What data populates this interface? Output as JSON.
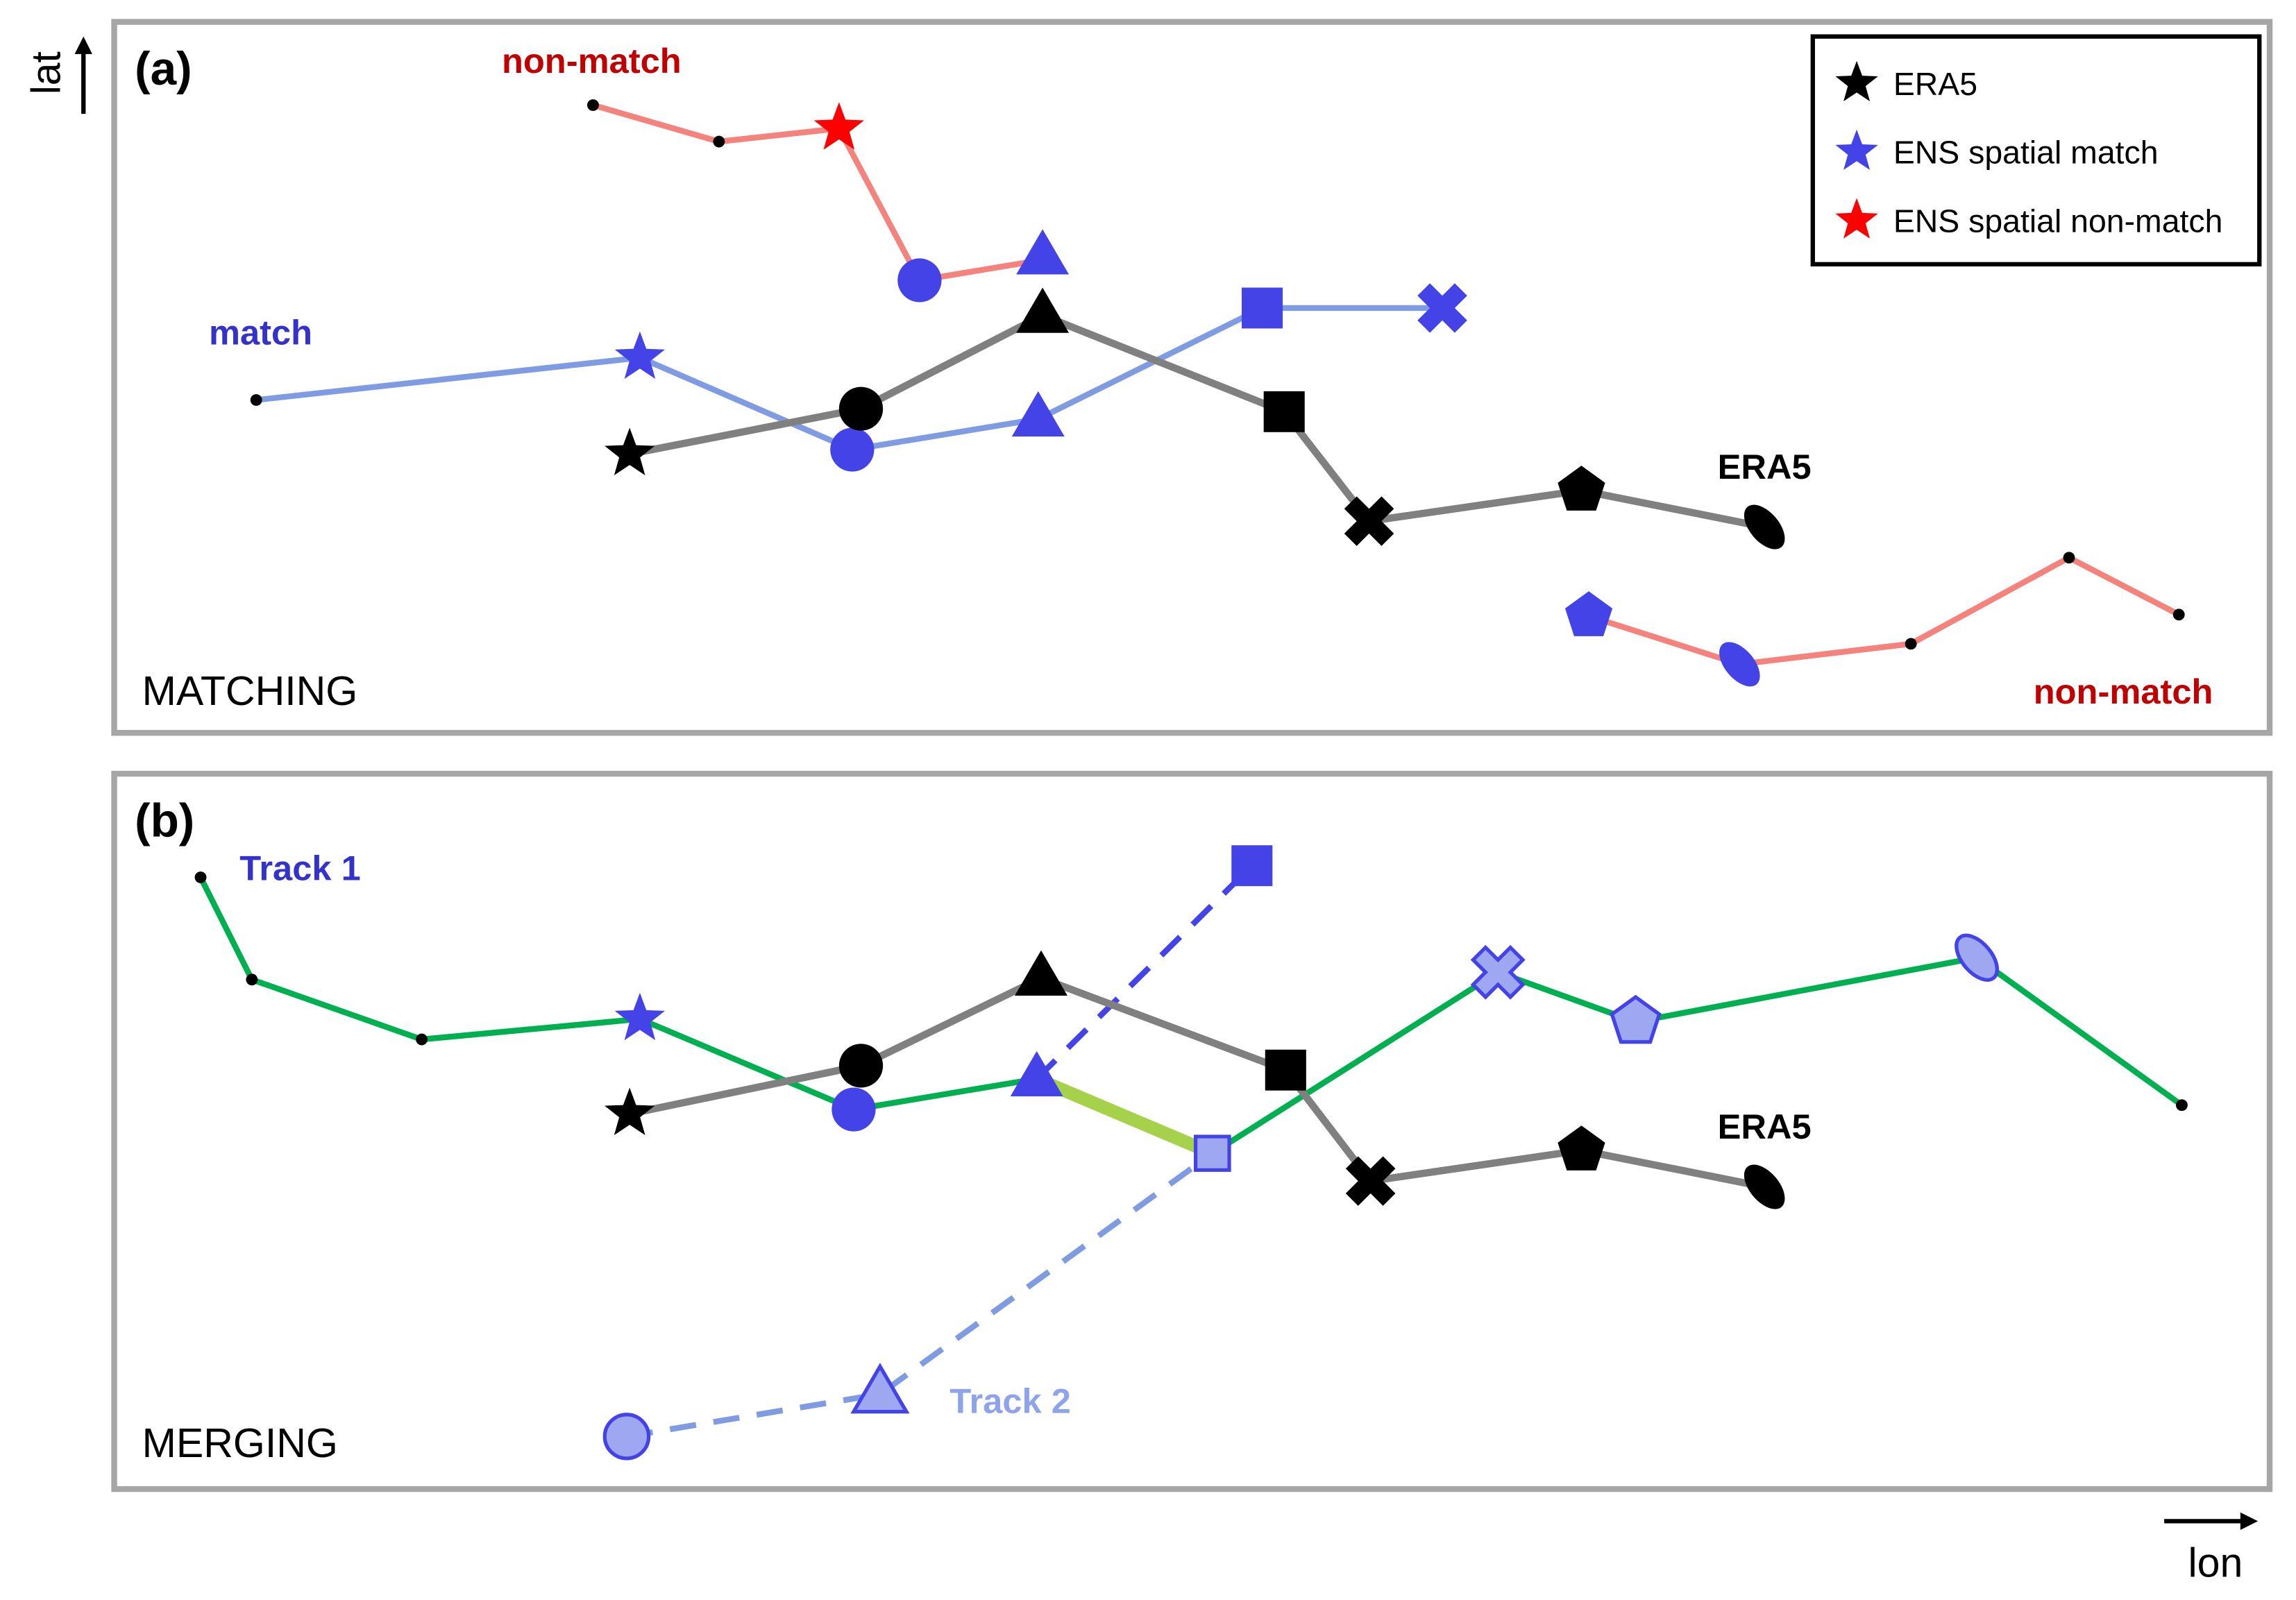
{
  "axes": {
    "lat": "lat",
    "lon": "lon"
  },
  "panel_a": {
    "label": "(a)",
    "title": "MATCHING",
    "non_match_top": "non-match",
    "match": "match",
    "era5": "ERA5",
    "non_match_bottom": "non-match"
  },
  "legend": {
    "items": [
      {
        "label": "ERA5",
        "marker": "star",
        "color": "#000000"
      },
      {
        "label": "ENS spatial match",
        "marker": "star",
        "color": "#4343e8"
      },
      {
        "label": "ENS spatial non-match",
        "marker": "star",
        "color": "#ff0000"
      }
    ]
  },
  "panel_b": {
    "label": "(b)",
    "title": "MERGING",
    "track1": "Track 1",
    "track2": "Track 2",
    "era5": "ERA5"
  },
  "colors": {
    "era5_marker": "#000000",
    "era5_line": "#808080",
    "ens_marker": "#4343e8",
    "ens_marker_light": "#9ea8f0",
    "match_line": "#7f9ce3",
    "non_match_line": "#f4837d",
    "non_match_text": "#c00000",
    "match_text": "#3333cc",
    "merged_track_line": "#00b050",
    "merge_link": "#a6d14a",
    "track2_text": "#8fa3ea",
    "frame": "#a6a6a6"
  }
}
